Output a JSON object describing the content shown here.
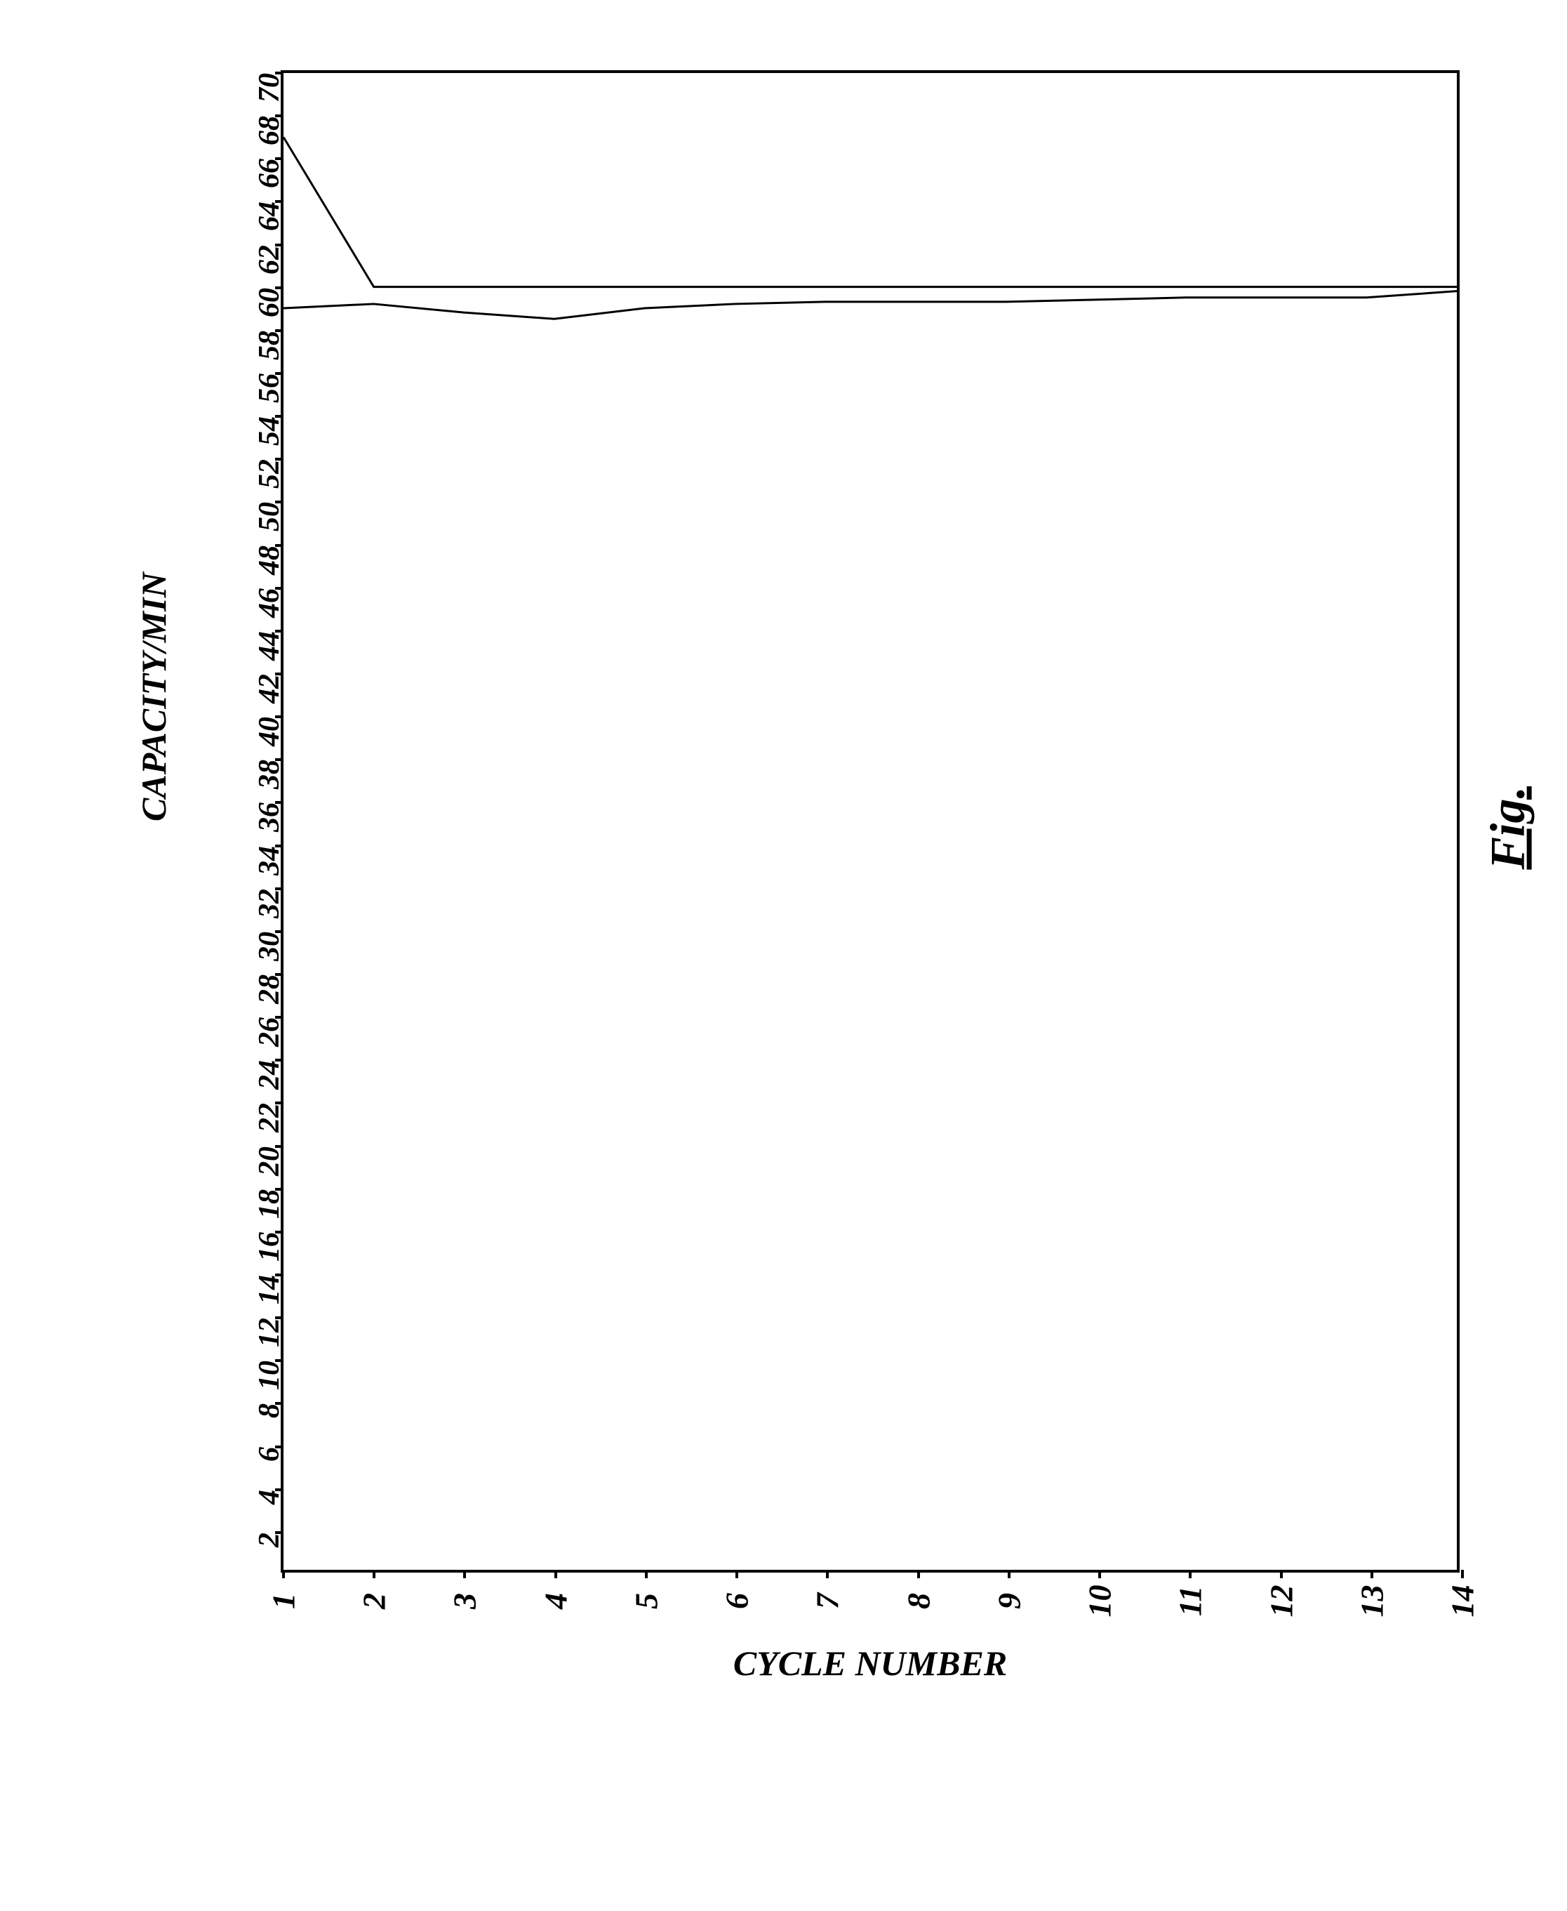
{
  "chart": {
    "type": "line",
    "x_axis": {
      "title": "CYCLE NUMBER",
      "min": 1,
      "max": 14,
      "ticks": [
        1,
        2,
        3,
        4,
        5,
        6,
        7,
        8,
        9,
        10,
        11,
        12,
        13,
        14
      ],
      "tick_labels": [
        "1",
        "2",
        "3",
        "4",
        "5",
        "6",
        "7",
        "8",
        "9",
        "10",
        "11",
        "12",
        "13",
        "14"
      ],
      "label_fontsize": 46,
      "title_fontsize": 50
    },
    "y_axis": {
      "title": "CAPACITY/MIN",
      "min": 0,
      "max": 70,
      "ticks": [
        2,
        4,
        6,
        8,
        10,
        12,
        14,
        16,
        18,
        20,
        22,
        24,
        26,
        28,
        30,
        32,
        34,
        36,
        38,
        40,
        42,
        44,
        46,
        48,
        50,
        52,
        54,
        56,
        58,
        60,
        62,
        64,
        66,
        68,
        70
      ],
      "tick_labels": [
        "2",
        "4",
        "6",
        "8",
        "10",
        "12",
        "14",
        "16",
        "18",
        "20",
        "22",
        "24",
        "26",
        "28",
        "30",
        "32",
        "34",
        "36",
        "38",
        "40",
        "42",
        "44",
        "46",
        "48",
        "50",
        "52",
        "54",
        "56",
        "58",
        "60",
        "62",
        "64",
        "66",
        "68",
        "70"
      ],
      "label_fontsize": 42,
      "title_fontsize": 50
    },
    "series": [
      {
        "name": "upper",
        "x": [
          1,
          2,
          3,
          4,
          5,
          6,
          7,
          8,
          9,
          10,
          11,
          12,
          13,
          14
        ],
        "y": [
          67.0,
          60.0,
          60.0,
          60.0,
          60.0,
          60.0,
          60.0,
          60.0,
          60.0,
          60.0,
          60.0,
          60.0,
          60.0,
          60.0
        ],
        "stroke": "#000000",
        "stroke_width": 3
      },
      {
        "name": "lower",
        "x": [
          1,
          2,
          3,
          4,
          5,
          6,
          7,
          8,
          9,
          10,
          11,
          12,
          13,
          14
        ],
        "y": [
          59.0,
          59.2,
          58.8,
          58.5,
          59.0,
          59.2,
          59.3,
          59.3,
          59.3,
          59.4,
          59.5,
          59.5,
          59.5,
          59.8
        ],
        "stroke": "#000000",
        "stroke_width": 3
      }
    ],
    "background_color": "#ffffff",
    "border_color": "#000000",
    "border_width": 4,
    "caption": "Fig.",
    "caption_fontsize": 70,
    "font_family": "Georgia, Times New Roman, serif",
    "font_style": "italic",
    "font_weight": "bold"
  }
}
